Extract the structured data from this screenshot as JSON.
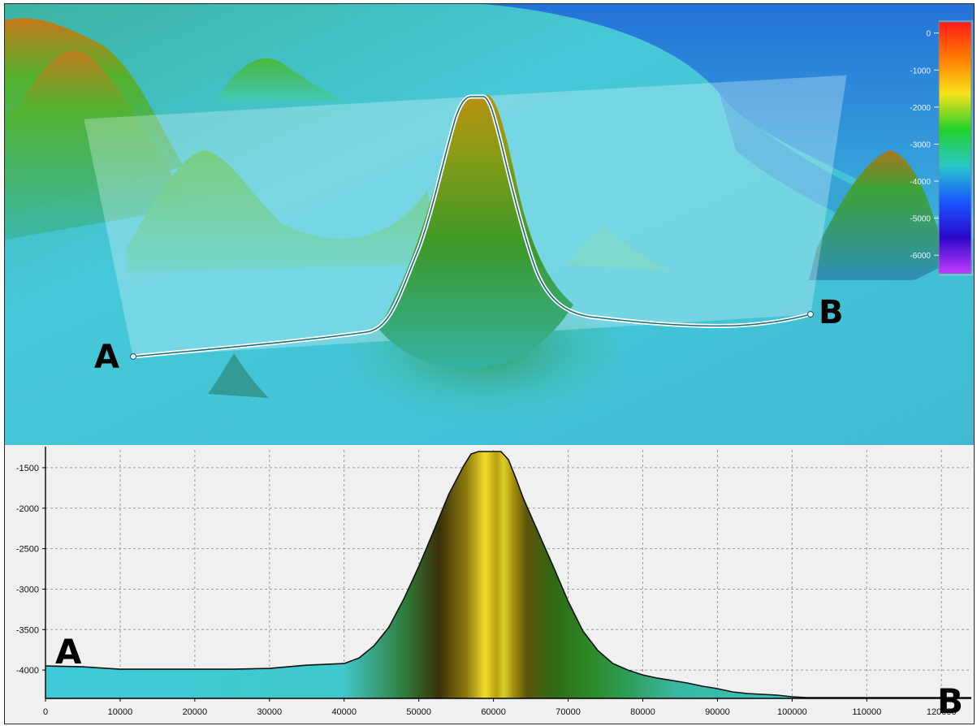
{
  "view_3d": {
    "profile_start_label": "A",
    "profile_end_label": "B",
    "colorbar": {
      "ticks": [
        "0",
        "-1000",
        "-2000",
        "-3000",
        "-4000",
        "-5000",
        "-6000"
      ],
      "tick_values": [
        0,
        -1000,
        -2000,
        -3000,
        -4000,
        -5000,
        -6000
      ],
      "min": -6500,
      "max": 300,
      "colors": [
        "#ff1a1a",
        "#ff7b00",
        "#f7e21a",
        "#23d12b",
        "#29c8c9",
        "#1857ff",
        "#2b07c9",
        "#c33dff"
      ]
    }
  },
  "chart_data": {
    "type": "area",
    "title": "",
    "xlabel": "",
    "ylabel": "",
    "xlim": [
      0,
      124000
    ],
    "ylim": [
      -4350,
      -1280
    ],
    "x_ticks": [
      0,
      10000,
      20000,
      30000,
      40000,
      50000,
      60000,
      70000,
      80000,
      90000,
      100000,
      110000,
      120000
    ],
    "x_tick_labels": [
      "0",
      "10000",
      "20000",
      "30000",
      "40000",
      "50000",
      "60000",
      "70000",
      "80000",
      "90000",
      "100000",
      "110000",
      "120000"
    ],
    "y_ticks": [
      -1500,
      -2000,
      -2500,
      -3000,
      -3500,
      -4000
    ],
    "y_tick_labels": [
      "-1500",
      "-2000",
      "-2500",
      "-3000",
      "-3500",
      "-4000"
    ],
    "grid": true,
    "annotations": [
      "A",
      "B"
    ],
    "series": [
      {
        "x": [
          0,
          5000,
          10000,
          15000,
          20000,
          25000,
          30000,
          35000,
          40000,
          42000,
          44000,
          46000,
          48000,
          50000,
          52000,
          54000,
          56000,
          57000,
          58000,
          59000,
          60000,
          61000,
          62000,
          63000,
          64000,
          66000,
          68000,
          70000,
          72000,
          74000,
          76000,
          78000,
          80000,
          82000,
          84000,
          86000,
          88000,
          90000,
          92000,
          94000,
          96000,
          98000,
          100000,
          102000,
          110000,
          120000,
          124000
        ],
        "y": [
          -3950,
          -3960,
          -3990,
          -3990,
          -3990,
          -3990,
          -3980,
          -3940,
          -3920,
          -3850,
          -3700,
          -3470,
          -3120,
          -2720,
          -2280,
          -1830,
          -1480,
          -1330,
          -1300,
          -1300,
          -1300,
          -1300,
          -1400,
          -1630,
          -1880,
          -2300,
          -2720,
          -3150,
          -3520,
          -3760,
          -3920,
          -4000,
          -4060,
          -4100,
          -4130,
          -4160,
          -4200,
          -4230,
          -4270,
          -4290,
          -4300,
          -4310,
          -4330,
          -4340,
          -4340,
          -4340,
          -4340
        ]
      }
    ]
  }
}
